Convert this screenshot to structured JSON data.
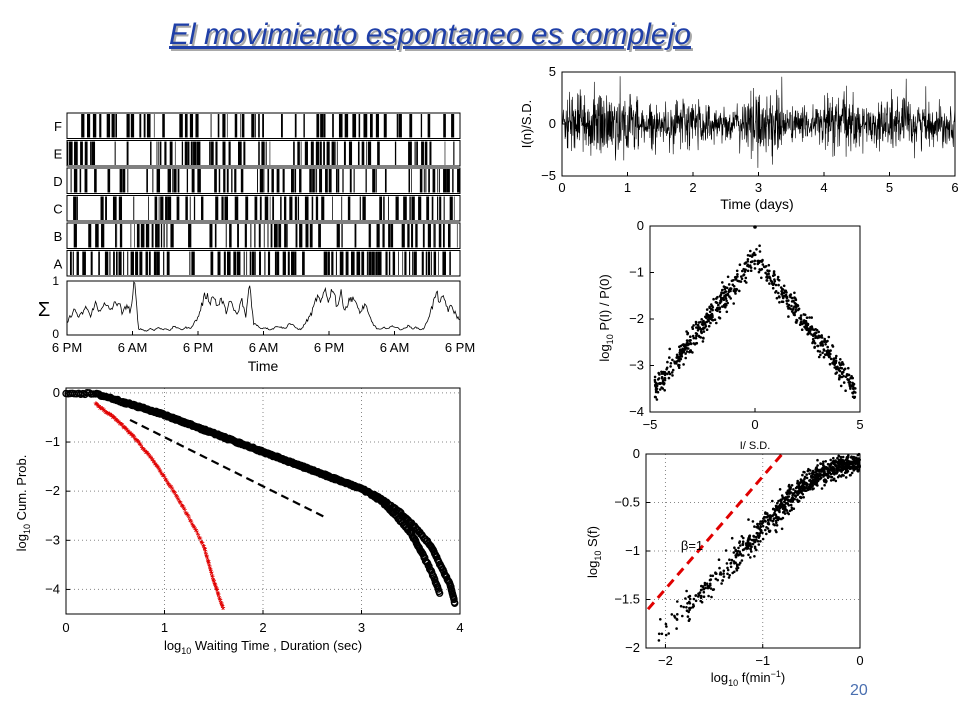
{
  "slide": {
    "title": "El movimiento espontaneo es complejo",
    "title_color": "#1f3fa8",
    "title_shadow_color": "#a9a9a9",
    "slide_number": "20"
  },
  "chart_data": [
    {
      "id": "raster",
      "type": "raster",
      "row_labels": [
        "F",
        "E",
        "D",
        "C",
        "B",
        "A"
      ],
      "sum_label": "Σ",
      "sum_ylim": [
        0,
        1
      ],
      "sum_yticks": [
        "0",
        "1"
      ],
      "xticks": [
        "6 PM",
        "6 AM",
        "6 PM",
        "6 AM",
        "6 PM",
        "6 AM",
        "6 PM"
      ],
      "xlabel": "Time",
      "sum_trace": [
        0.2,
        0.35,
        0.45,
        0.3,
        0.4,
        0.5,
        0.3,
        0.6,
        0.4,
        0.55,
        0.5,
        0.45,
        0.55,
        0.6,
        0.35,
        0.55,
        0.4,
        0.95,
        0.1,
        0.08,
        0.05,
        0.1,
        0.07,
        0.12,
        0.08,
        0.1,
        0.06,
        0.15,
        0.1,
        0.08,
        0.12,
        0.1,
        0.2,
        0.3,
        0.55,
        0.75,
        0.6,
        0.7,
        0.5,
        0.65,
        0.4,
        0.6,
        0.45,
        0.35,
        0.65,
        0.3,
        0.95,
        0.2,
        0.15,
        0.1,
        0.12,
        0.08,
        0.1,
        0.15,
        0.12,
        0.1,
        0.2,
        0.15,
        0.1,
        0.08,
        0.2,
        0.3,
        0.45,
        0.7,
        0.55,
        0.85,
        0.6,
        0.9,
        0.5,
        0.75,
        0.45,
        0.6,
        0.7,
        0.5,
        0.4,
        0.55,
        0.35,
        0.2,
        0.1,
        0.08,
        0.12,
        0.1,
        0.15,
        0.12,
        0.08,
        0.1,
        0.15,
        0.1,
        0.12,
        0.08,
        0.1,
        0.3,
        0.5,
        0.75,
        0.6,
        0.65,
        0.45,
        0.5,
        0.35,
        0.25
      ]
    },
    {
      "id": "signal",
      "type": "line",
      "ylabel": "I(n)/S.D.",
      "xlabel": "Time (days)",
      "xlim": [
        0,
        6
      ],
      "ylim": [
        -5,
        5
      ],
      "xticks": [
        "0",
        "1",
        "2",
        "3",
        "4",
        "5",
        "6"
      ],
      "yticks": [
        "−5",
        "0",
        "5"
      ],
      "envelope": [
        [
          0,
          2.6
        ],
        [
          0.5,
          3.8
        ],
        [
          1,
          4.0
        ],
        [
          1.3,
          2.0
        ],
        [
          1.6,
          2.2
        ],
        [
          2,
          3.5
        ],
        [
          2.4,
          1.8
        ],
        [
          2.7,
          2.0
        ],
        [
          3,
          4.2
        ],
        [
          3.3,
          3.5
        ],
        [
          3.5,
          2.0
        ],
        [
          3.8,
          1.6
        ],
        [
          4,
          3.5
        ],
        [
          4.3,
          3.8
        ],
        [
          4.6,
          2.0
        ],
        [
          5,
          3.5
        ],
        [
          5.4,
          3.0
        ],
        [
          5.7,
          2.2
        ],
        [
          6,
          2.6
        ]
      ]
    },
    {
      "id": "distribution",
      "type": "scatter",
      "xlabel": "I/ S.D.",
      "ylabel": "log10 P(I) / P(0)",
      "ylabel_parts": {
        "base": "log",
        "sub": "10",
        "rest": " P(I) / P(0)"
      },
      "xlim": [
        -5,
        5
      ],
      "ylim": [
        -4,
        0
      ],
      "xticks": [
        "−5",
        "0",
        "5"
      ],
      "yticks": [
        "0",
        "−1",
        "−2",
        "−3",
        "−4"
      ],
      "peak": 0,
      "shape": "laplace"
    },
    {
      "id": "survival",
      "type": "scatter",
      "xlabel": "log10 Waiting Time , Duration (sec)",
      "xlabel_parts": {
        "base": "log",
        "sub": "10",
        "rest": " Waiting Time , Duration (sec)"
      },
      "ylabel": "log10 Cum. Prob.",
      "ylabel_parts": {
        "base": "log",
        "sub": "10",
        "rest": " Cum. Prob."
      },
      "xlim": [
        0,
        4
      ],
      "ylim": [
        -4.5,
        0.1
      ],
      "xticks": [
        "0",
        "1",
        "2",
        "3",
        "4"
      ],
      "yticks": [
        "0",
        "−1",
        "−2",
        "−3",
        "−4"
      ],
      "grid": true,
      "series": [
        {
          "color": "#000000",
          "x": [
            0,
            0.3,
            0.45,
            0.6,
            0.8,
            1.0,
            1.2,
            1.4,
            1.6,
            1.8,
            2.0,
            2.2,
            2.4,
            2.6,
            2.8,
            3.0,
            3.2,
            3.4,
            3.55,
            3.7,
            3.8,
            3.9,
            3.95
          ],
          "y": [
            0,
            -0.02,
            -0.1,
            -0.2,
            -0.32,
            -0.45,
            -0.6,
            -0.75,
            -0.9,
            -1.05,
            -1.2,
            -1.35,
            -1.5,
            -1.65,
            -1.8,
            -1.95,
            -2.15,
            -2.45,
            -2.75,
            -3.1,
            -3.5,
            -3.9,
            -4.3
          ]
        },
        {
          "color": "#000000",
          "x": [
            0.6,
            0.8,
            1.0,
            1.2,
            1.4,
            1.6,
            1.8,
            2.0,
            2.2,
            2.4,
            2.6,
            2.8,
            3.0,
            3.2,
            3.35,
            3.5,
            3.6,
            3.7,
            3.8
          ],
          "y": [
            -0.2,
            -0.32,
            -0.45,
            -0.6,
            -0.75,
            -0.9,
            -1.05,
            -1.2,
            -1.35,
            -1.5,
            -1.65,
            -1.8,
            -1.95,
            -2.2,
            -2.5,
            -2.85,
            -3.2,
            -3.6,
            -4.1
          ]
        },
        {
          "color": "#e00000",
          "x": [
            0.3,
            0.4,
            0.5,
            0.6,
            0.7,
            0.8,
            0.9,
            1.0,
            1.1,
            1.2,
            1.3,
            1.4,
            1.45,
            1.5,
            1.55,
            1.6
          ],
          "y": [
            -0.25,
            -0.4,
            -0.55,
            -0.75,
            -0.95,
            -1.2,
            -1.45,
            -1.75,
            -2.05,
            -2.4,
            -2.75,
            -3.15,
            -3.5,
            -3.85,
            -4.15,
            -4.45
          ]
        }
      ],
      "reference_line": {
        "x": [
          0.65,
          2.65
        ],
        "y": [
          -0.55,
          -2.55
        ],
        "style": "dashed",
        "color": "#000000"
      }
    },
    {
      "id": "spectrum",
      "type": "scatter",
      "xlabel": "log10 f(min−1)",
      "xlabel_parts": {
        "base": "log",
        "sub": "10",
        "mid": " f(min",
        "sup": "−1",
        "rest": ")"
      },
      "ylabel": "log10 S(f)",
      "ylabel_parts": {
        "base": "log",
        "sub": "10",
        "rest": " S(f)"
      },
      "xlim": [
        -2.2,
        0
      ],
      "ylim": [
        -2,
        0
      ],
      "xticks": [
        "−2",
        "−1",
        "0"
      ],
      "yticks": [
        "0",
        "−0.5",
        "−1",
        "−1.5",
        "−2"
      ],
      "grid": true,
      "annotation": "β=1",
      "reference_line": {
        "x": [
          -2.2,
          -0.8
        ],
        "y": [
          -1.6,
          0
        ],
        "style": "dashed",
        "color": "#e00000"
      },
      "trend": [
        [
          -2.1,
          -1.9
        ],
        [
          -1.8,
          -1.6
        ],
        [
          -1.5,
          -1.3
        ],
        [
          -1.2,
          -1.0
        ],
        [
          -1.0,
          -0.75
        ],
        [
          -0.8,
          -0.55
        ],
        [
          -0.6,
          -0.35
        ],
        [
          -0.4,
          -0.2
        ],
        [
          -0.2,
          -0.12
        ],
        [
          0,
          -0.1
        ]
      ]
    }
  ]
}
